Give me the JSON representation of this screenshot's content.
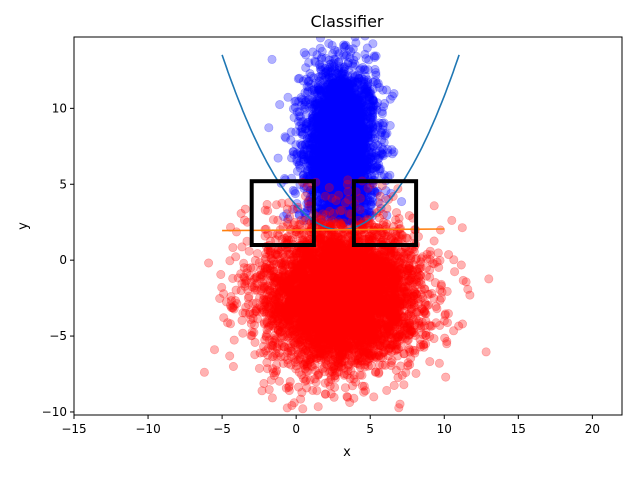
{
  "chart_data": {
    "type": "scatter",
    "title": "Classifier",
    "xlabel": "x",
    "ylabel": "y",
    "xlim": [
      -15,
      22
    ],
    "ylim": [
      -10.2,
      14.7
    ],
    "xticks": [
      -15,
      -10,
      -5,
      0,
      5,
      10,
      15,
      20
    ],
    "yticks": [
      -10,
      -5,
      0,
      5,
      10
    ],
    "xtick_labels": [
      "−15",
      "−10",
      "−5",
      "0",
      "5",
      "10",
      "15",
      "20"
    ],
    "ytick_labels": [
      "−10",
      "−5",
      "0",
      "5",
      "10"
    ],
    "grid": false,
    "legend": "none",
    "series": [
      {
        "kind": "scatter",
        "color": "#0000ff",
        "alpha": 0.3,
        "cluster": {
          "center": [
            3.0,
            7.5
          ],
          "sx": 1.2,
          "sy": 2.6,
          "approx_points": 3500
        },
        "outliers": [
          [
            2.9,
            13.6
          ],
          [
            3.4,
            13.5
          ],
          [
            4.5,
            12.7
          ],
          [
            0.2,
            9.5
          ],
          [
            5.8,
            9.8
          ]
        ]
      },
      {
        "kind": "scatter",
        "color": "#ff0000",
        "alpha": 0.3,
        "cluster": {
          "center": [
            3.0,
            -2.3
          ],
          "sx": 2.6,
          "sy": 2.3,
          "approx_points": 5500
        },
        "outliers": [
          [
            -4.4,
            -2.4
          ],
          [
            9.7,
            -4.3
          ],
          [
            9.8,
            -2.5
          ],
          [
            9.8,
            -1.6
          ],
          [
            7.4,
            -7.4
          ],
          [
            8.6,
            -5.6
          ],
          [
            1.4,
            -8.6
          ],
          [
            3.9,
            -9.1
          ],
          [
            4.6,
            -8.3
          ],
          [
            -2.2,
            -6.1
          ],
          [
            -0.4,
            -8.0
          ],
          [
            9.5,
            -3.2
          ],
          [
            -3.3,
            2.5
          ]
        ]
      },
      {
        "kind": "line",
        "color": "#1f77b4",
        "name": "",
        "shape": "parabola",
        "vertex": [
          3.0,
          2.0
        ],
        "a": 0.18,
        "x_range": [
          -5.0,
          11.0
        ]
      },
      {
        "kind": "line",
        "color": "#ff7f0e",
        "name": "",
        "points": [
          [
            -5.0,
            1.95
          ],
          [
            10.0,
            2.05
          ]
        ]
      }
    ],
    "annotations": [
      {
        "kind": "rectangle",
        "x": [
          -3.0,
          1.2
        ],
        "y": [
          1.0,
          5.2
        ],
        "color": "#000000"
      },
      {
        "kind": "rectangle",
        "x": [
          3.9,
          8.1
        ],
        "y": [
          1.0,
          5.2
        ],
        "color": "#000000"
      }
    ]
  }
}
